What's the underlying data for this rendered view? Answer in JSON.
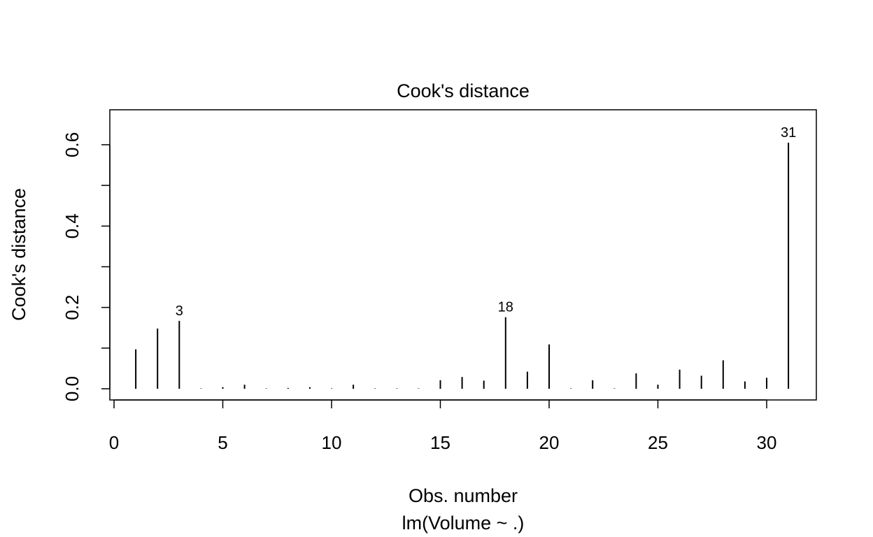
{
  "chart_data": {
    "type": "bar",
    "title": "Cook's distance",
    "xlabel": "Obs. number",
    "subtitle": "lm(Volume ~ .)",
    "ylabel": "Cook's distance",
    "xlim": [
      0,
      31
    ],
    "ylim": [
      0,
      0.605
    ],
    "x_ticks": [
      0,
      5,
      10,
      15,
      20,
      25,
      30
    ],
    "y_ticks": [
      0.0,
      0.1,
      0.2,
      0.3,
      0.4,
      0.5,
      0.6
    ],
    "y_tick_labels": [
      {
        "value": 0.0,
        "label": "0.0"
      },
      {
        "value": 0.2,
        "label": "0.2"
      },
      {
        "value": 0.4,
        "label": "0.4"
      },
      {
        "value": 0.6,
        "label": "0.6"
      }
    ],
    "x": [
      1,
      2,
      3,
      4,
      5,
      6,
      7,
      8,
      9,
      10,
      11,
      12,
      13,
      14,
      15,
      16,
      17,
      18,
      19,
      20,
      21,
      22,
      23,
      24,
      25,
      26,
      27,
      28,
      29,
      30,
      31
    ],
    "values": [
      0.097,
      0.148,
      0.167,
      0.001,
      0.004,
      0.01,
      0.001,
      0.002,
      0.004,
      0.001,
      0.01,
      0.001,
      0.001,
      0.001,
      0.021,
      0.029,
      0.02,
      0.176,
      0.042,
      0.109,
      0.001,
      0.021,
      0.001,
      0.038,
      0.01,
      0.047,
      0.032,
      0.07,
      0.018,
      0.027,
      0.605
    ],
    "labeled_points": [
      {
        "x": 3,
        "label": "3"
      },
      {
        "x": 18,
        "label": "18"
      },
      {
        "x": 31,
        "label": "31"
      }
    ],
    "grid": false,
    "color": "#000000"
  }
}
